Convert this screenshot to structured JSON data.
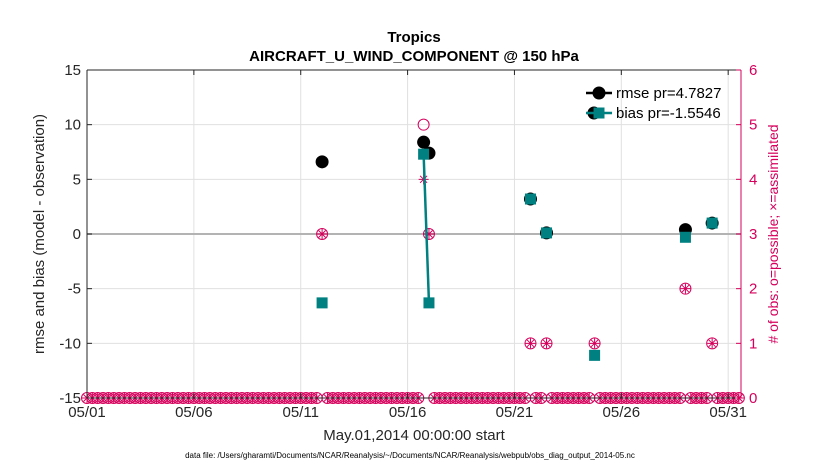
{
  "chart_data": {
    "type": "line",
    "title": "Tropics",
    "subtitle": "AIRCRAFT_U_WIND_COMPONENT @ 150 hPa",
    "xlabel": "May.01,2014 00:00:00 start",
    "ylabel": "rmse and bias (model - observation)",
    "y2label": "# of obs: o=possible; ×=assimilated",
    "xlim": [
      1,
      31.6
    ],
    "ylim": [
      -15,
      15
    ],
    "y2lim": [
      0,
      6
    ],
    "xticks": [
      1,
      6,
      11,
      16,
      21,
      26,
      31
    ],
    "xtick_labels": [
      "05/01",
      "05/06",
      "05/11",
      "05/16",
      "05/21",
      "05/26",
      "05/31"
    ],
    "yticks": [
      -15,
      -10,
      -5,
      0,
      5,
      10,
      15
    ],
    "ytick_labels": [
      "-15",
      "-10",
      "-5",
      "0",
      "5",
      "10",
      "15"
    ],
    "y2ticks": [
      0,
      1,
      2,
      3,
      4,
      5,
      6
    ],
    "y2tick_labels": [
      "0",
      "1",
      "2",
      "3",
      "4",
      "5",
      "6"
    ],
    "grid": true,
    "legend_position": "top-right",
    "series": [
      {
        "name": "rmse pr=4.7827",
        "color": "#000000",
        "marker": "circle",
        "points": [
          [
            12.0,
            6.6
          ],
          [
            16.75,
            8.4
          ],
          [
            17.0,
            7.4
          ],
          [
            21.75,
            3.2
          ],
          [
            22.5,
            0.1
          ],
          [
            29.0,
            0.4
          ],
          [
            30.25,
            1.0
          ]
        ]
      },
      {
        "name": "bias pr=-1.5546",
        "color": "#008080",
        "marker": "square",
        "points": [
          [
            12.0,
            -6.3
          ],
          [
            16.75,
            7.3
          ],
          [
            17.0,
            -6.3
          ],
          [
            21.75,
            3.2
          ],
          [
            22.5,
            0.1
          ],
          [
            24.75,
            -11.1
          ],
          [
            29.0,
            -0.3
          ],
          [
            30.25,
            1.0
          ]
        ]
      }
    ],
    "obs_counts": {
      "color": "#d6005c",
      "possible": [
        [
          12.0,
          3
        ],
        [
          16.75,
          5
        ],
        [
          17.0,
          3
        ],
        [
          21.75,
          1
        ],
        [
          22.5,
          1
        ],
        [
          24.75,
          1
        ],
        [
          29.0,
          2
        ],
        [
          30.25,
          1
        ]
      ],
      "assimilated": [
        [
          12.0,
          3
        ],
        [
          16.75,
          4
        ],
        [
          17.0,
          3
        ],
        [
          21.75,
          1
        ],
        [
          22.5,
          1
        ],
        [
          24.75,
          1
        ],
        [
          29.0,
          2
        ],
        [
          30.25,
          1
        ]
      ],
      "baseline_step_days": 0.25
    }
  },
  "footnote": "data file: /Users/gharamti/Documents/NCAR/Reanalysis/~/Documents/NCAR/Reanalysis/webpub/obs_diag_output_2014-05.nc"
}
